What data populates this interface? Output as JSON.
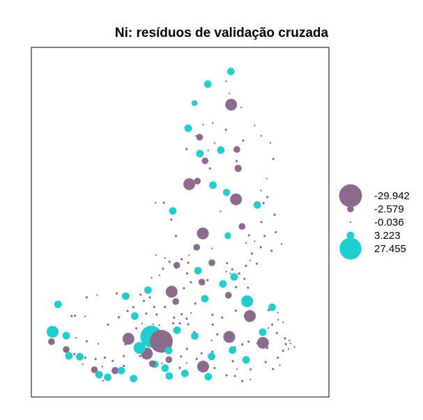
{
  "chart_data": {
    "type": "scatter",
    "title": "Ni: resíduos de validação cruzada",
    "xlabel": "",
    "ylabel": "",
    "grid": false,
    "legend_position": "right",
    "colors": {
      "negative": "#8b6a8b",
      "positive": "#1fcfcf",
      "frame": "#000000"
    },
    "legend": [
      "-29.942",
      "-2.579",
      "-0.036",
      "3.223",
      "27.455"
    ],
    "legend_values": [
      -29.942,
      -2.579,
      -0.036,
      3.223,
      27.455
    ],
    "xlim": [
      0,
      1
    ],
    "ylim": [
      0,
      1
    ],
    "points": [
      [
        0.688,
        0.983,
        3.2
      ],
      [
        0.603,
        0.943,
        3.2
      ],
      [
        0.554,
        0.883,
        2.1
      ],
      [
        0.689,
        0.878,
        -8.0
      ],
      [
        0.531,
        0.803,
        3.2
      ],
      [
        0.573,
        0.775,
        -2.6
      ],
      [
        0.67,
        0.799,
        -0.3
      ],
      [
        0.525,
        0.737,
        -0.3
      ],
      [
        0.574,
        0.723,
        3.2
      ],
      [
        0.651,
        0.734,
        3.2
      ],
      [
        0.733,
        0.764,
        -0.3
      ],
      [
        0.593,
        0.7,
        -2.6
      ],
      [
        0.71,
        0.736,
        -2.6
      ],
      [
        0.715,
        0.676,
        -3.0
      ],
      [
        0.709,
        0.699,
        -0.3
      ],
      [
        0.611,
        0.676,
        -0.3
      ],
      [
        0.535,
        0.626,
        -8.0
      ],
      [
        0.565,
        0.636,
        -2.6
      ],
      [
        0.622,
        0.623,
        3.2
      ],
      [
        0.672,
        0.6,
        3.0
      ],
      [
        0.707,
        0.578,
        -8.0
      ],
      [
        0.785,
        0.56,
        3.2
      ],
      [
        0.441,
        0.567,
        -0.3
      ],
      [
        0.474,
        0.541,
        3.2
      ],
      [
        0.469,
        0.514,
        -0.3
      ],
      [
        0.411,
        0.567,
        -0.1
      ],
      [
        0.65,
        0.54,
        -0.1
      ],
      [
        0.729,
        0.492,
        -2.6
      ],
      [
        0.755,
        0.464,
        -0.3
      ],
      [
        0.585,
        0.47,
        -8.0
      ],
      [
        0.562,
        0.426,
        -2.6
      ],
      [
        0.618,
        0.422,
        -0.1
      ],
      [
        0.677,
        0.463,
        2.6
      ],
      [
        0.486,
        0.462,
        -0.3
      ],
      [
        0.534,
        0.401,
        -0.1
      ],
      [
        0.618,
        0.377,
        -2.6
      ],
      [
        0.674,
        0.376,
        -0.3
      ],
      [
        0.445,
        0.392,
        -0.1
      ],
      [
        0.489,
        0.369,
        -2.6
      ],
      [
        0.413,
        0.401,
        -0.1
      ],
      [
        0.581,
        0.316,
        -2.6
      ],
      [
        0.592,
        0.263,
        3.2
      ],
      [
        0.7,
        0.332,
        3.2
      ],
      [
        0.751,
        0.298,
        -0.3
      ],
      [
        0.679,
        0.274,
        -2.6
      ],
      [
        0.748,
        0.255,
        8.0
      ],
      [
        0.758,
        0.208,
        -8.0
      ],
      [
        0.84,
        0.236,
        3.2
      ],
      [
        0.857,
        0.154,
        -0.3
      ],
      [
        0.682,
        0.142,
        -8.0
      ],
      [
        0.753,
        0.127,
        -0.3
      ],
      [
        0.806,
        0.123,
        -8.0
      ],
      [
        0.89,
        0.119,
        -0.3
      ],
      [
        0.47,
        0.285,
        -8.0
      ],
      [
        0.485,
        0.254,
        -2.6
      ],
      [
        0.479,
        0.203,
        -0.3
      ],
      [
        0.476,
        0.185,
        -0.3
      ],
      [
        0.531,
        0.182,
        -0.3
      ],
      [
        0.49,
        0.163,
        3.2
      ],
      [
        0.428,
        0.148,
        -0.3
      ],
      [
        0.39,
        0.158,
        -0.3
      ],
      [
        0.408,
        0.102,
        -0.1
      ],
      [
        0.379,
        0.089,
        -8.0
      ],
      [
        0.34,
        0.099,
        -0.3
      ],
      [
        0.311,
        0.136,
        -8.0
      ],
      [
        0.294,
        0.081,
        -0.3
      ],
      [
        0.294,
        0.05,
        -0.3
      ],
      [
        0.262,
        0.035,
        -3.0
      ],
      [
        0.334,
        0.208,
        3.2
      ],
      [
        0.276,
        0.204,
        -0.3
      ],
      [
        0.236,
        0.181,
        -0.3
      ],
      [
        0.301,
        0.271,
        3.2
      ],
      [
        0.308,
        0.224,
        -0.3
      ],
      [
        0.377,
        0.216,
        -0.3
      ],
      [
        0.415,
        0.213,
        -0.3
      ],
      [
        0.406,
        0.237,
        -0.3
      ],
      [
        0.368,
        0.256,
        -0.3
      ],
      [
        0.268,
        0.28,
        -0.3
      ],
      [
        0.196,
        0.275,
        -0.1
      ],
      [
        0.158,
        0.267,
        -0.3
      ],
      [
        0.114,
        0.209,
        -0.3
      ],
      [
        0.052,
        0.245,
        3.2
      ],
      [
        0.152,
        0.207,
        -0.1
      ],
      [
        0.102,
        0.208,
        -0.3
      ],
      [
        0.032,
        0.158,
        8.0
      ],
      [
        0.082,
        0.146,
        3.2
      ],
      [
        0.028,
        0.127,
        -2.6
      ],
      [
        0.082,
        0.102,
        -2.6
      ],
      [
        0.112,
        0.088,
        -0.3
      ],
      [
        0.092,
        0.082,
        3.2
      ],
      [
        0.132,
        0.079,
        3.2
      ],
      [
        0.152,
        0.076,
        -0.3
      ],
      [
        0.19,
        0.072,
        -0.3
      ],
      [
        0.224,
        0.076,
        -0.3
      ],
      [
        0.253,
        0.066,
        -0.3
      ],
      [
        0.2,
        0.12,
        -0.1
      ],
      [
        0.158,
        0.128,
        -0.3
      ],
      [
        0.118,
        0.139,
        -0.1
      ],
      [
        0.143,
        0.055,
        -0.1
      ],
      [
        0.186,
        0.038,
        -2.6
      ],
      [
        0.33,
        0.01,
        3.2
      ],
      [
        0.285,
        0.035,
        3.2
      ],
      [
        0.235,
        0.014,
        3.2
      ],
      [
        0.218,
        0.003,
        -0.1
      ],
      [
        0.203,
        0.022,
        3.2
      ],
      [
        0.215,
        0.048,
        -0.1
      ],
      [
        0.378,
        0.157,
        -0.1
      ],
      [
        0.395,
        0.143,
        27.455
      ],
      [
        0.432,
        0.128,
        -29.942
      ],
      [
        0.361,
        0.184,
        -0.1
      ],
      [
        0.402,
        0.182,
        -0.1
      ],
      [
        0.425,
        0.179,
        -0.1
      ],
      [
        0.34,
        0.169,
        -0.3
      ],
      [
        0.352,
        0.107,
        8.0
      ],
      [
        0.354,
        0.081,
        -0.3
      ],
      [
        0.3,
        0.118,
        -0.3
      ],
      [
        0.459,
        0.099,
        3.2
      ],
      [
        0.46,
        0.07,
        -2.6
      ],
      [
        0.446,
        0.043,
        3.2
      ],
      [
        0.434,
        0.058,
        -0.1
      ],
      [
        0.408,
        0.055,
        3.2
      ],
      [
        0.399,
        0.057,
        -2.6
      ],
      [
        0.505,
        0.08,
        -0.3
      ],
      [
        0.461,
        0.018,
        3.2
      ],
      [
        0.5,
        0.044,
        -0.3
      ],
      [
        0.519,
        0.026,
        3.2
      ],
      [
        0.525,
        0.059,
        -0.1
      ],
      [
        0.562,
        0.072,
        -0.3
      ],
      [
        0.58,
        0.09,
        -0.3
      ],
      [
        0.617,
        0.08,
        3.2
      ],
      [
        0.586,
        0.048,
        -8.0
      ],
      [
        0.605,
        0.016,
        3.2
      ],
      [
        0.672,
        0.02,
        -0.3
      ],
      [
        0.628,
        0.043,
        -0.3
      ],
      [
        0.62,
        0.095,
        -0.3
      ],
      [
        0.617,
        0.131,
        -0.1
      ],
      [
        0.638,
        0.15,
        -0.3
      ],
      [
        0.553,
        0.157,
        -0.3
      ],
      [
        0.555,
        0.145,
        3.2
      ],
      [
        0.526,
        0.104,
        -0.3
      ],
      [
        0.5,
        0.185,
        -0.3
      ],
      [
        0.525,
        0.2,
        -0.3
      ],
      [
        0.507,
        0.214,
        -0.3
      ],
      [
        0.541,
        0.218,
        -0.1
      ],
      [
        0.557,
        0.248,
        -0.3
      ],
      [
        0.515,
        0.296,
        -0.3
      ],
      [
        0.541,
        0.315,
        -0.3
      ],
      [
        0.567,
        0.352,
        3.2
      ],
      [
        0.527,
        0.343,
        -0.3
      ],
      [
        0.531,
        0.377,
        -0.3
      ],
      [
        0.507,
        0.388,
        -0.3
      ],
      [
        0.462,
        0.38,
        -0.3
      ],
      [
        0.438,
        0.358,
        -0.3
      ],
      [
        0.425,
        0.337,
        -0.1
      ],
      [
        0.396,
        0.329,
        -0.1
      ],
      [
        0.383,
        0.29,
        3.2
      ],
      [
        0.39,
        0.267,
        -0.3
      ],
      [
        0.356,
        0.276,
        -0.3
      ],
      [
        0.329,
        0.236,
        -0.3
      ],
      [
        0.445,
        0.237,
        -0.3
      ],
      [
        0.602,
        0.322,
        -0.3
      ],
      [
        0.59,
        0.309,
        -0.1
      ],
      [
        0.659,
        0.31,
        3.2
      ],
      [
        0.671,
        0.349,
        -0.1
      ],
      [
        0.62,
        0.212,
        -0.3
      ],
      [
        0.621,
        0.181,
        -0.3
      ],
      [
        0.656,
        0.203,
        -0.3
      ],
      [
        0.706,
        0.225,
        -0.3
      ],
      [
        0.751,
        0.193,
        -0.3
      ],
      [
        0.805,
        0.157,
        3.2
      ],
      [
        0.827,
        0.227,
        -0.3
      ],
      [
        0.84,
        0.181,
        -0.3
      ],
      [
        0.822,
        0.107,
        -0.3
      ],
      [
        0.861,
        0.076,
        -0.3
      ],
      [
        0.816,
        0.062,
        -0.3
      ],
      [
        0.843,
        0.04,
        -0.3
      ],
      [
        0.868,
        0.052,
        -0.1
      ],
      [
        0.88,
        0.098,
        -0.3
      ],
      [
        0.887,
        0.137,
        -0.3
      ],
      [
        0.907,
        0.121,
        -0.1
      ],
      [
        0.826,
        0.17,
        -0.1
      ],
      [
        0.862,
        0.196,
        -0.1
      ],
      [
        0.861,
        0.219,
        -0.1
      ],
      [
        0.88,
        0.188,
        -0.1
      ],
      [
        0.9,
        0.104,
        -0.1
      ],
      [
        0.903,
        0.131,
        -0.1
      ],
      [
        0.922,
        0.11,
        -0.1
      ],
      [
        0.786,
        0.122,
        -0.3
      ],
      [
        0.73,
        0.118,
        -0.3
      ],
      [
        0.702,
        0.11,
        -0.1
      ],
      [
        0.694,
        0.1,
        3.2
      ],
      [
        0.744,
        0.069,
        3.2
      ],
      [
        0.695,
        0.065,
        -0.3
      ],
      [
        0.71,
        0.04,
        -0.1
      ],
      [
        0.761,
        0.039,
        -0.3
      ],
      [
        0.703,
        0.018,
        -0.3
      ],
      [
        0.76,
        0.007,
        -0.1
      ],
      [
        0.73,
        0.002,
        -0.3
      ],
      [
        0.707,
        0.3,
        -0.3
      ],
      [
        0.718,
        0.343,
        -0.3
      ],
      [
        0.686,
        0.343,
        -0.1
      ],
      [
        0.693,
        0.356,
        -0.3
      ],
      [
        0.738,
        0.326,
        -0.3
      ],
      [
        0.743,
        0.367,
        -0.3
      ],
      [
        0.759,
        0.384,
        -0.1
      ],
      [
        0.783,
        0.374,
        -0.3
      ],
      [
        0.765,
        0.406,
        -0.3
      ],
      [
        0.744,
        0.44,
        -0.1
      ],
      [
        0.775,
        0.445,
        -0.1
      ],
      [
        0.798,
        0.426,
        -0.3
      ],
      [
        0.812,
        0.462,
        -0.3
      ],
      [
        0.838,
        0.415,
        -0.3
      ],
      [
        0.8,
        0.506,
        -0.3
      ],
      [
        0.808,
        0.566,
        -0.3
      ],
      [
        0.822,
        0.585,
        -0.3
      ],
      [
        0.849,
        0.529,
        -0.3
      ],
      [
        0.853,
        0.474,
        -0.3
      ],
      [
        0.874,
        0.436,
        -0.1
      ],
      [
        0.799,
        0.606,
        -0.1
      ],
      [
        0.82,
        0.644,
        -0.1
      ],
      [
        0.844,
        0.706,
        -0.3
      ],
      [
        0.833,
        0.757,
        -0.1
      ],
      [
        0.8,
        0.779,
        -0.1
      ],
      [
        0.775,
        0.812,
        -0.1
      ],
      [
        0.726,
        0.869,
        -0.1
      ],
      [
        0.682,
        0.913,
        -0.1
      ],
      [
        0.67,
        0.952,
        -0.1
      ],
      [
        0.586,
        0.815,
        -0.1
      ],
      [
        0.56,
        0.779,
        -0.1
      ],
      [
        0.604,
        0.733,
        -0.1
      ],
      [
        0.628,
        0.756,
        -0.1
      ],
      [
        0.621,
        0.82,
        -0.1
      ]
    ]
  }
}
